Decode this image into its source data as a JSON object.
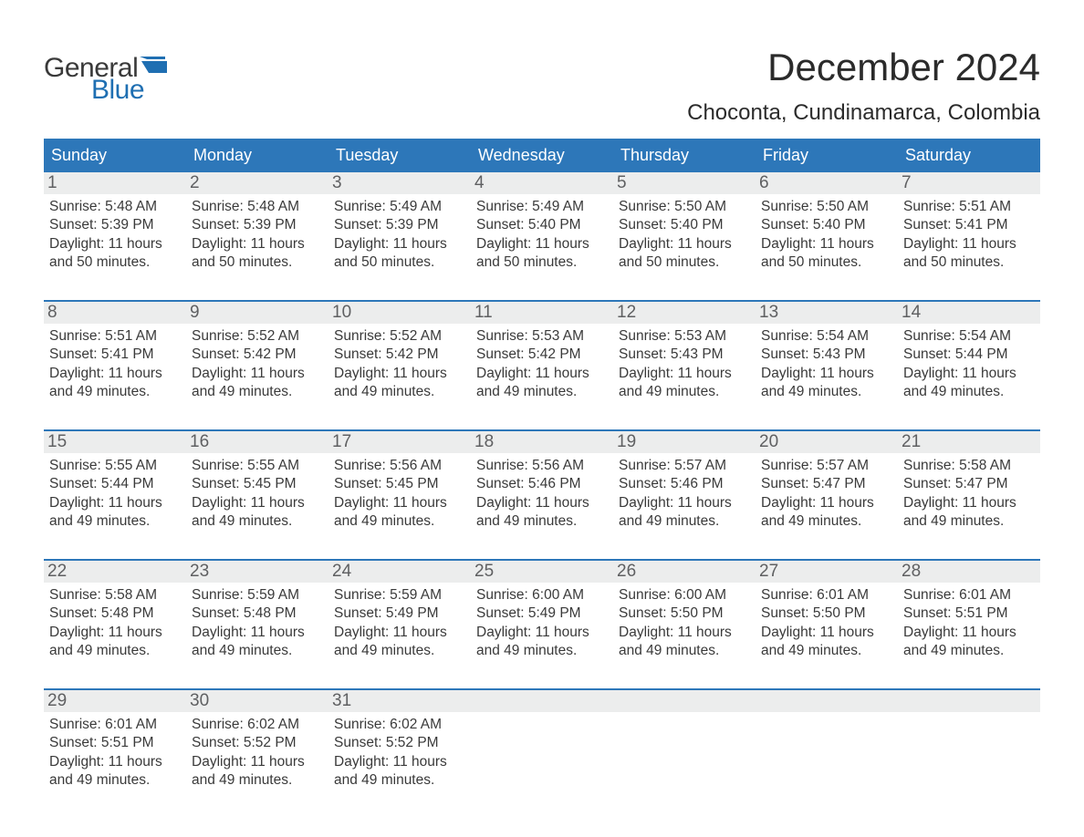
{
  "logo": {
    "text_general": "General",
    "text_blue": "Blue",
    "icon_color": "#1f6fb2"
  },
  "title": "December 2024",
  "location": "Choconta, Cundinamarca, Colombia",
  "colors": {
    "header_bg": "#2d77b9",
    "daynum_bg": "#eceded",
    "text": "#3a3a3a",
    "logo_blue": "#1f6fb2"
  },
  "days_of_week": [
    "Sunday",
    "Monday",
    "Tuesday",
    "Wednesday",
    "Thursday",
    "Friday",
    "Saturday"
  ],
  "weeks": [
    [
      {
        "n": "1",
        "sunrise": "Sunrise: 5:48 AM",
        "sunset": "Sunset: 5:39 PM",
        "daylight1": "Daylight: 11 hours",
        "daylight2": "and 50 minutes."
      },
      {
        "n": "2",
        "sunrise": "Sunrise: 5:48 AM",
        "sunset": "Sunset: 5:39 PM",
        "daylight1": "Daylight: 11 hours",
        "daylight2": "and 50 minutes."
      },
      {
        "n": "3",
        "sunrise": "Sunrise: 5:49 AM",
        "sunset": "Sunset: 5:39 PM",
        "daylight1": "Daylight: 11 hours",
        "daylight2": "and 50 minutes."
      },
      {
        "n": "4",
        "sunrise": "Sunrise: 5:49 AM",
        "sunset": "Sunset: 5:40 PM",
        "daylight1": "Daylight: 11 hours",
        "daylight2": "and 50 minutes."
      },
      {
        "n": "5",
        "sunrise": "Sunrise: 5:50 AM",
        "sunset": "Sunset: 5:40 PM",
        "daylight1": "Daylight: 11 hours",
        "daylight2": "and 50 minutes."
      },
      {
        "n": "6",
        "sunrise": "Sunrise: 5:50 AM",
        "sunset": "Sunset: 5:40 PM",
        "daylight1": "Daylight: 11 hours",
        "daylight2": "and 50 minutes."
      },
      {
        "n": "7",
        "sunrise": "Sunrise: 5:51 AM",
        "sunset": "Sunset: 5:41 PM",
        "daylight1": "Daylight: 11 hours",
        "daylight2": "and 50 minutes."
      }
    ],
    [
      {
        "n": "8",
        "sunrise": "Sunrise: 5:51 AM",
        "sunset": "Sunset: 5:41 PM",
        "daylight1": "Daylight: 11 hours",
        "daylight2": "and 49 minutes."
      },
      {
        "n": "9",
        "sunrise": "Sunrise: 5:52 AM",
        "sunset": "Sunset: 5:42 PM",
        "daylight1": "Daylight: 11 hours",
        "daylight2": "and 49 minutes."
      },
      {
        "n": "10",
        "sunrise": "Sunrise: 5:52 AM",
        "sunset": "Sunset: 5:42 PM",
        "daylight1": "Daylight: 11 hours",
        "daylight2": "and 49 minutes."
      },
      {
        "n": "11",
        "sunrise": "Sunrise: 5:53 AM",
        "sunset": "Sunset: 5:42 PM",
        "daylight1": "Daylight: 11 hours",
        "daylight2": "and 49 minutes."
      },
      {
        "n": "12",
        "sunrise": "Sunrise: 5:53 AM",
        "sunset": "Sunset: 5:43 PM",
        "daylight1": "Daylight: 11 hours",
        "daylight2": "and 49 minutes."
      },
      {
        "n": "13",
        "sunrise": "Sunrise: 5:54 AM",
        "sunset": "Sunset: 5:43 PM",
        "daylight1": "Daylight: 11 hours",
        "daylight2": "and 49 minutes."
      },
      {
        "n": "14",
        "sunrise": "Sunrise: 5:54 AM",
        "sunset": "Sunset: 5:44 PM",
        "daylight1": "Daylight: 11 hours",
        "daylight2": "and 49 minutes."
      }
    ],
    [
      {
        "n": "15",
        "sunrise": "Sunrise: 5:55 AM",
        "sunset": "Sunset: 5:44 PM",
        "daylight1": "Daylight: 11 hours",
        "daylight2": "and 49 minutes."
      },
      {
        "n": "16",
        "sunrise": "Sunrise: 5:55 AM",
        "sunset": "Sunset: 5:45 PM",
        "daylight1": "Daylight: 11 hours",
        "daylight2": "and 49 minutes."
      },
      {
        "n": "17",
        "sunrise": "Sunrise: 5:56 AM",
        "sunset": "Sunset: 5:45 PM",
        "daylight1": "Daylight: 11 hours",
        "daylight2": "and 49 minutes."
      },
      {
        "n": "18",
        "sunrise": "Sunrise: 5:56 AM",
        "sunset": "Sunset: 5:46 PM",
        "daylight1": "Daylight: 11 hours",
        "daylight2": "and 49 minutes."
      },
      {
        "n": "19",
        "sunrise": "Sunrise: 5:57 AM",
        "sunset": "Sunset: 5:46 PM",
        "daylight1": "Daylight: 11 hours",
        "daylight2": "and 49 minutes."
      },
      {
        "n": "20",
        "sunrise": "Sunrise: 5:57 AM",
        "sunset": "Sunset: 5:47 PM",
        "daylight1": "Daylight: 11 hours",
        "daylight2": "and 49 minutes."
      },
      {
        "n": "21",
        "sunrise": "Sunrise: 5:58 AM",
        "sunset": "Sunset: 5:47 PM",
        "daylight1": "Daylight: 11 hours",
        "daylight2": "and 49 minutes."
      }
    ],
    [
      {
        "n": "22",
        "sunrise": "Sunrise: 5:58 AM",
        "sunset": "Sunset: 5:48 PM",
        "daylight1": "Daylight: 11 hours",
        "daylight2": "and 49 minutes."
      },
      {
        "n": "23",
        "sunrise": "Sunrise: 5:59 AM",
        "sunset": "Sunset: 5:48 PM",
        "daylight1": "Daylight: 11 hours",
        "daylight2": "and 49 minutes."
      },
      {
        "n": "24",
        "sunrise": "Sunrise: 5:59 AM",
        "sunset": "Sunset: 5:49 PM",
        "daylight1": "Daylight: 11 hours",
        "daylight2": "and 49 minutes."
      },
      {
        "n": "25",
        "sunrise": "Sunrise: 6:00 AM",
        "sunset": "Sunset: 5:49 PM",
        "daylight1": "Daylight: 11 hours",
        "daylight2": "and 49 minutes."
      },
      {
        "n": "26",
        "sunrise": "Sunrise: 6:00 AM",
        "sunset": "Sunset: 5:50 PM",
        "daylight1": "Daylight: 11 hours",
        "daylight2": "and 49 minutes."
      },
      {
        "n": "27",
        "sunrise": "Sunrise: 6:01 AM",
        "sunset": "Sunset: 5:50 PM",
        "daylight1": "Daylight: 11 hours",
        "daylight2": "and 49 minutes."
      },
      {
        "n": "28",
        "sunrise": "Sunrise: 6:01 AM",
        "sunset": "Sunset: 5:51 PM",
        "daylight1": "Daylight: 11 hours",
        "daylight2": "and 49 minutes."
      }
    ],
    [
      {
        "n": "29",
        "sunrise": "Sunrise: 6:01 AM",
        "sunset": "Sunset: 5:51 PM",
        "daylight1": "Daylight: 11 hours",
        "daylight2": "and 49 minutes."
      },
      {
        "n": "30",
        "sunrise": "Sunrise: 6:02 AM",
        "sunset": "Sunset: 5:52 PM",
        "daylight1": "Daylight: 11 hours",
        "daylight2": "and 49 minutes."
      },
      {
        "n": "31",
        "sunrise": "Sunrise: 6:02 AM",
        "sunset": "Sunset: 5:52 PM",
        "daylight1": "Daylight: 11 hours",
        "daylight2": "and 49 minutes."
      },
      {
        "empty": true
      },
      {
        "empty": true
      },
      {
        "empty": true
      },
      {
        "empty": true
      }
    ]
  ]
}
